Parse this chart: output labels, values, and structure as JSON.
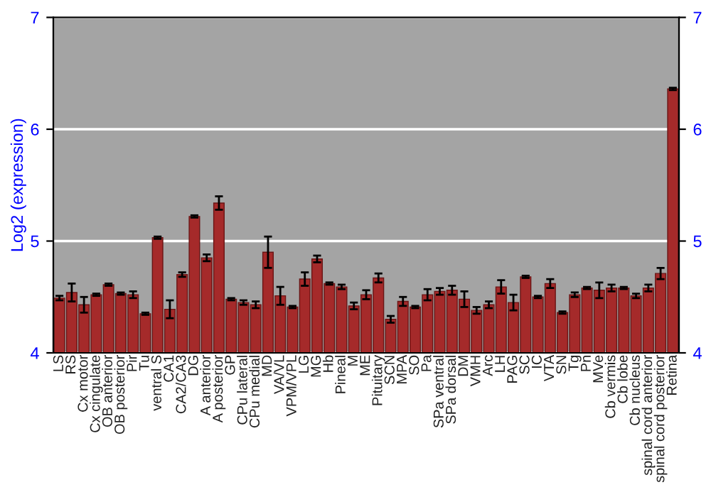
{
  "chart_data": {
    "type": "bar",
    "ylabel": "Log2 (expression)",
    "categories": [
      "LS",
      "RS",
      "Cx motor",
      "Cx cingulate",
      "OB anterior",
      "OB posterior",
      "Pir",
      "Tu",
      "ventral S",
      "CA1",
      "CA2/CA3",
      "DG",
      "A anterior",
      "A posterior",
      "GP",
      "CPu lateral",
      "CPu medial",
      "MD",
      "VA/VL",
      "VPM/VPL",
      "LG",
      "MG",
      "Hb",
      "Pineal",
      "M",
      "ME",
      "Pituitary",
      "SCN",
      "MPA",
      "SO",
      "Pa",
      "SPa ventral",
      "SPa dorsal",
      "DM",
      "VMH",
      "Arc",
      "LH",
      "PAG",
      "SC",
      "IC",
      "VTA",
      "SN",
      "Tg",
      "Pn",
      "MVe",
      "Cb vermis",
      "Cb lobe",
      "Cb nucleus",
      "spinal cord anterior",
      "spinal cord posterior",
      "Retina"
    ],
    "values": [
      4.49,
      4.54,
      4.43,
      4.52,
      4.61,
      4.53,
      4.52,
      4.35,
      5.03,
      4.39,
      4.7,
      5.22,
      4.85,
      5.34,
      4.48,
      4.45,
      4.43,
      4.9,
      4.51,
      4.41,
      4.66,
      4.84,
      4.62,
      4.59,
      4.42,
      4.52,
      4.67,
      4.3,
      4.46,
      4.41,
      4.52,
      4.55,
      4.56,
      4.48,
      4.38,
      4.43,
      4.59,
      4.45,
      4.68,
      4.5,
      4.62,
      4.36,
      4.52,
      4.58,
      4.56,
      4.58,
      4.58,
      4.51,
      4.58,
      4.71,
      6.36
    ],
    "errors": [
      0.02,
      0.08,
      0.07,
      0.01,
      0.01,
      0.01,
      0.03,
      0.01,
      0.01,
      0.08,
      0.02,
      0.01,
      0.03,
      0.06,
      0.01,
      0.02,
      0.03,
      0.14,
      0.08,
      0.01,
      0.06,
      0.03,
      0.01,
      0.02,
      0.03,
      0.04,
      0.04,
      0.03,
      0.04,
      0.01,
      0.05,
      0.03,
      0.04,
      0.07,
      0.03,
      0.03,
      0.06,
      0.07,
      0.01,
      0.01,
      0.04,
      0.01,
      0.02,
      0.01,
      0.07,
      0.03,
      0.01,
      0.02,
      0.03,
      0.05,
      0.01
    ],
    "color": "#a52a2a",
    "ylim": [
      4,
      7
    ],
    "yticks": [
      4,
      5,
      6,
      7
    ],
    "y2lim": [
      4,
      7
    ],
    "y2ticks": [
      4,
      5,
      6,
      7
    ],
    "grid": "y"
  }
}
